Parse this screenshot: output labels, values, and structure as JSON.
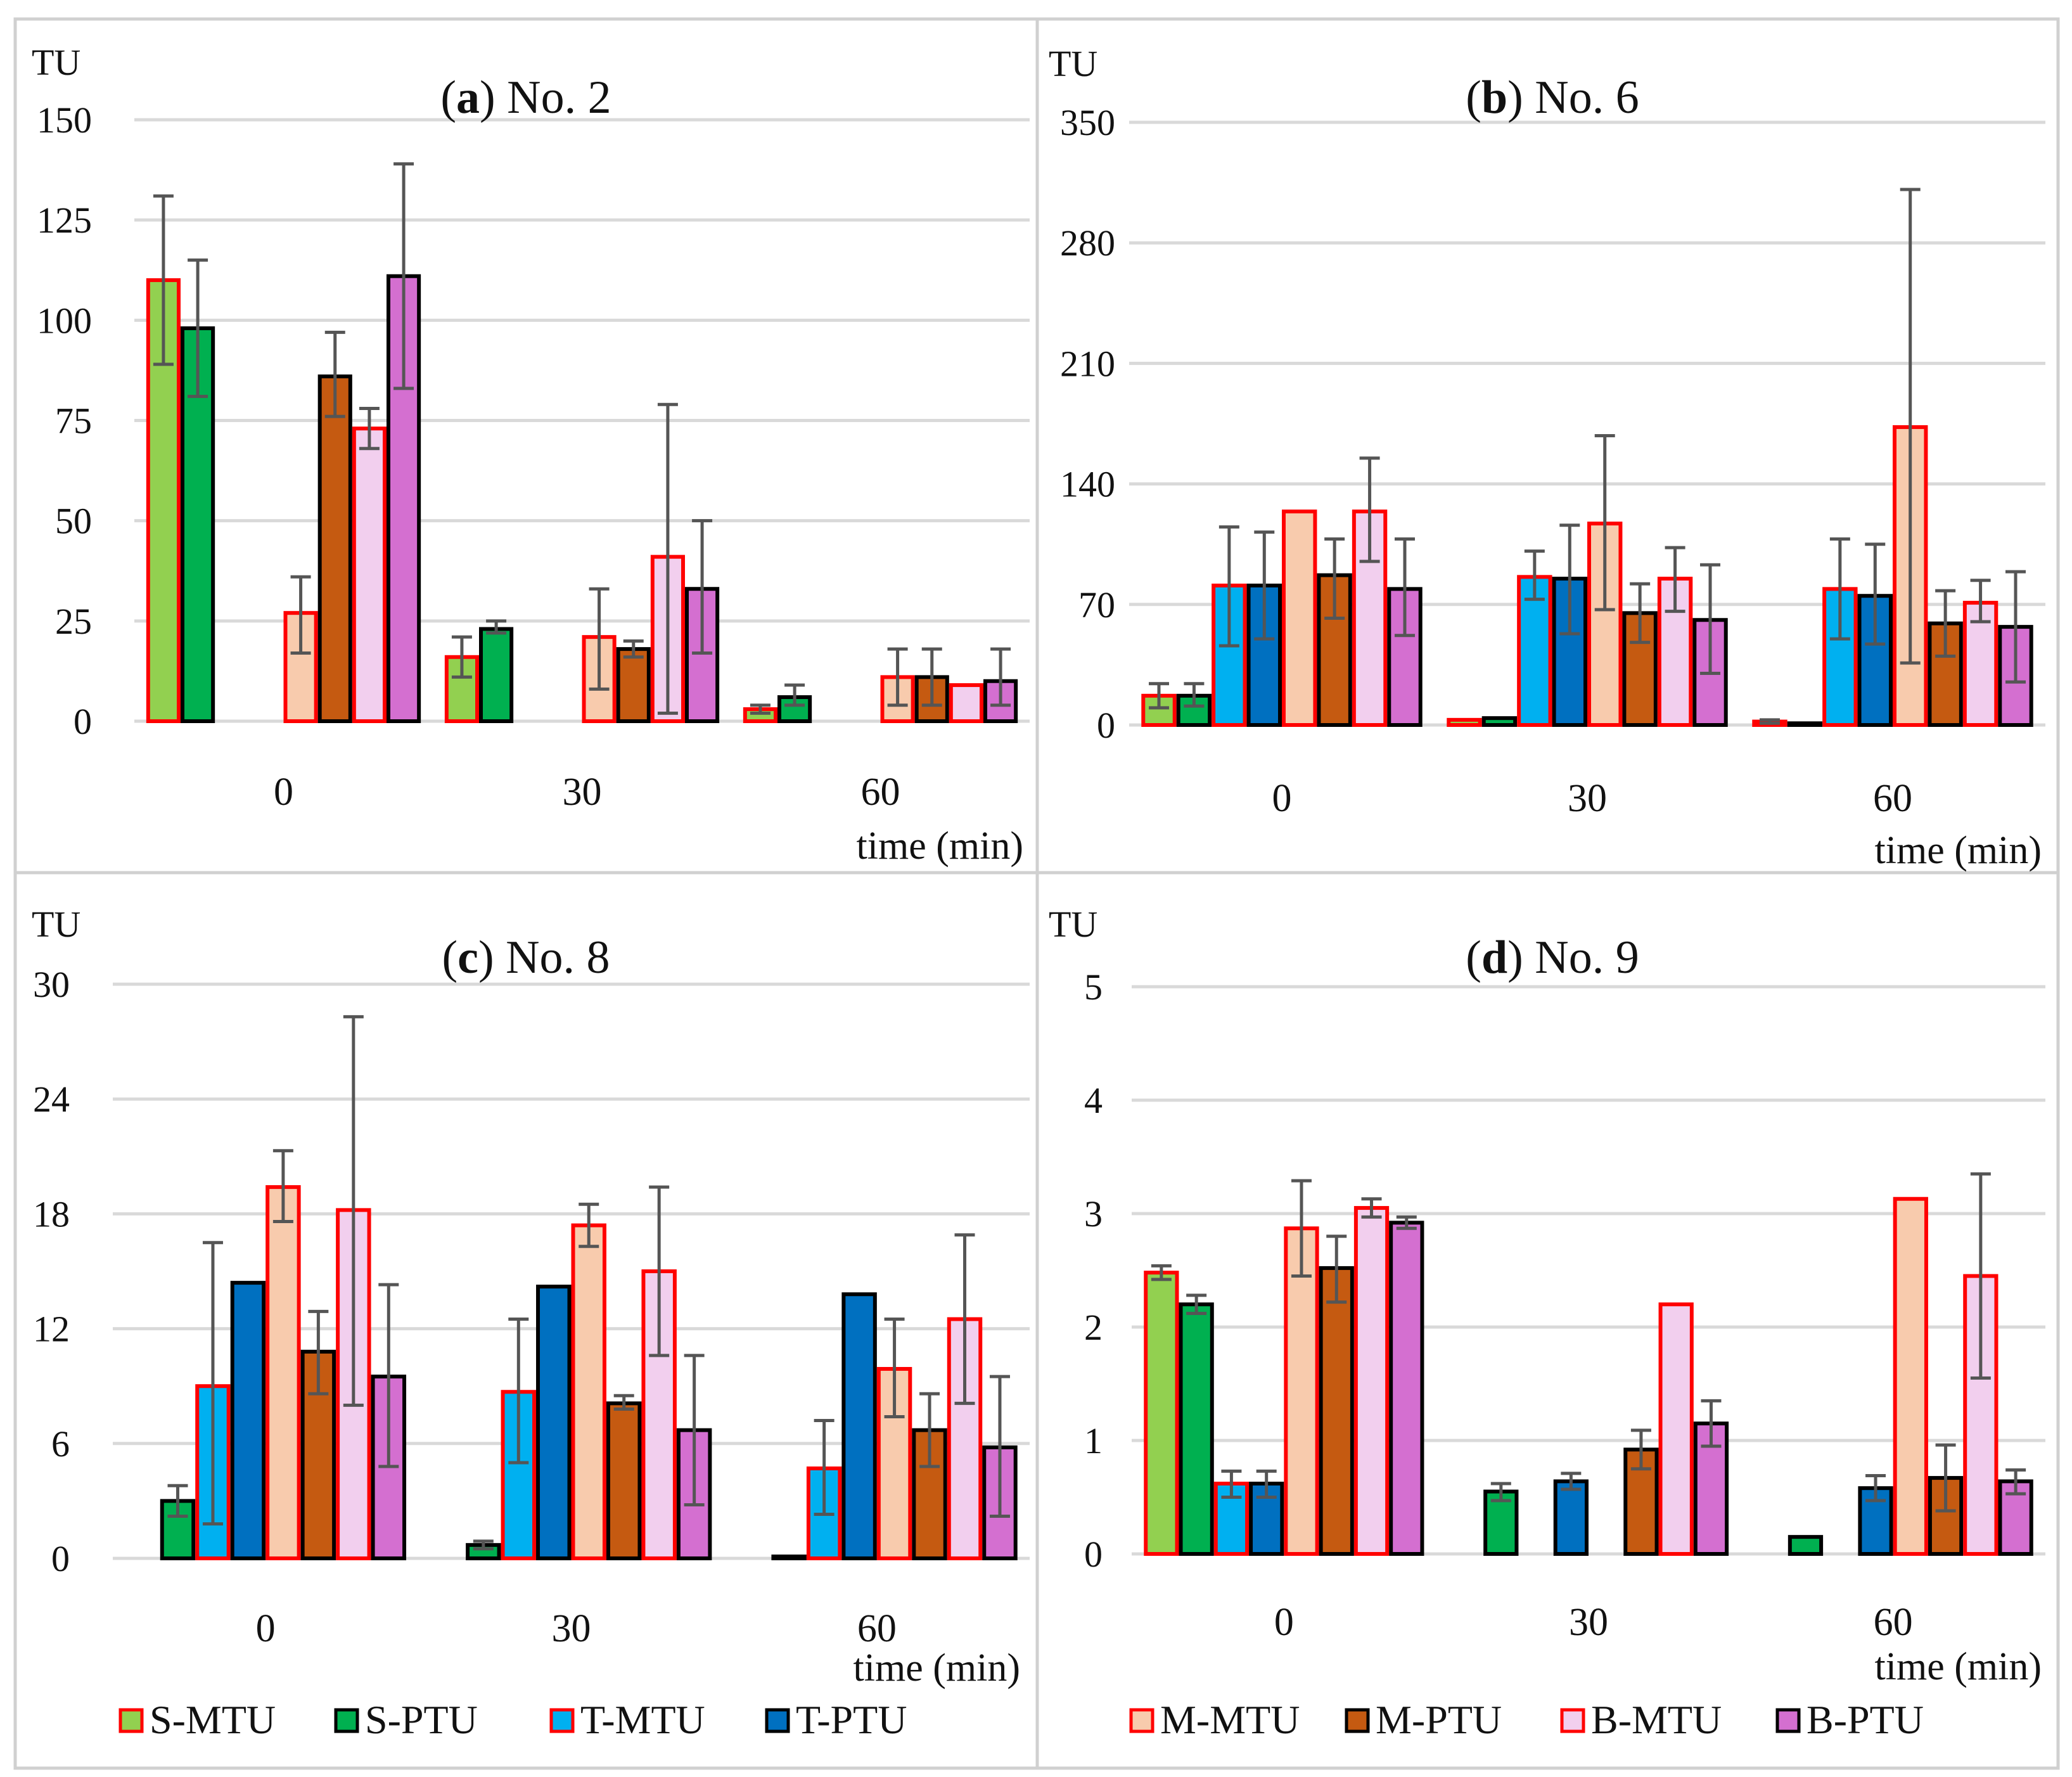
{
  "chart_data": {
    "type": "bar",
    "categories": [
      "0",
      "30",
      "60"
    ],
    "xlabel": "time (min)",
    "ylabel": "TU",
    "series_names": [
      "S-MTU",
      "S-PTU",
      "T-MTU",
      "T-PTU",
      "M-MTU",
      "M-PTU",
      "B-MTU",
      "B-PTU"
    ],
    "series_colors": [
      "#92d050",
      "#00b050",
      "#00b0f0",
      "#0070c0",
      "#f8cbad",
      "#c55a11",
      "#f2cfee",
      "#d46fd0"
    ],
    "series_borders": [
      "#ff0000",
      "#000000",
      "#ff0000",
      "#000000",
      "#ff0000",
      "#000000",
      "#ff0000",
      "#000000"
    ],
    "error_bar_color": "#555555",
    "grid": true,
    "legends": [
      {
        "placement": "bottom-left",
        "entries": [
          "S-MTU",
          "S-PTU",
          "T-MTU",
          "T-PTU"
        ]
      },
      {
        "placement": "bottom-right",
        "entries": [
          "M-MTU",
          "M-PTU",
          "B-MTU",
          "B-PTU"
        ]
      }
    ],
    "panels": [
      {
        "label": "a",
        "title": "No. 2",
        "ylim": [
          0,
          150
        ],
        "yticks": [
          0,
          25,
          50,
          75,
          100,
          125,
          150
        ],
        "values": [
          [
            110,
            98,
            null,
            null,
            27,
            86,
            73,
            111
          ],
          [
            16,
            23,
            null,
            null,
            21,
            18,
            41,
            33
          ],
          [
            3,
            6,
            null,
            null,
            11,
            11,
            9,
            10
          ]
        ],
        "errors": [
          [
            [
              89,
              131
            ],
            [
              81,
              115
            ],
            null,
            null,
            [
              17,
              36
            ],
            [
              76,
              97
            ],
            [
              68,
              78
            ],
            [
              83,
              139
            ]
          ],
          [
            [
              11,
              21
            ],
            [
              22,
              25
            ],
            null,
            null,
            [
              8,
              33
            ],
            [
              16,
              20
            ],
            [
              2,
              79
            ],
            [
              17,
              50
            ]
          ],
          [
            [
              2,
              4
            ],
            [
              4,
              9
            ],
            null,
            null,
            [
              4,
              18
            ],
            [
              4,
              18
            ],
            null,
            [
              4,
              18
            ]
          ]
        ]
      },
      {
        "label": "b",
        "title": "No. 6",
        "ylim": [
          0,
          350
        ],
        "yticks": [
          0,
          70,
          140,
          210,
          280,
          350
        ],
        "values": [
          [
            17,
            17,
            81,
            81,
            124,
            87,
            124,
            79
          ],
          [
            3,
            4,
            86,
            85,
            117,
            65,
            85,
            61
          ],
          [
            2,
            1,
            79,
            75,
            173,
            59,
            71,
            57
          ]
        ],
        "errors": [
          [
            [
              10,
              24
            ],
            [
              11,
              24
            ],
            [
              46,
              115
            ],
            [
              50,
              112
            ],
            null,
            [
              62,
              108
            ],
            [
              95,
              155
            ],
            [
              52,
              108
            ]
          ],
          [
            null,
            null,
            [
              73,
              101
            ],
            [
              53,
              116
            ],
            [
              67,
              168
            ],
            [
              48,
              82
            ],
            [
              66,
              103
            ],
            [
              30,
              93
            ]
          ],
          [
            [
              1,
              3
            ],
            null,
            [
              50,
              108
            ],
            [
              47,
              105
            ],
            [
              36,
              311
            ],
            [
              40,
              78
            ],
            [
              60,
              84
            ],
            [
              25,
              89
            ]
          ]
        ]
      },
      {
        "label": "c",
        "title": "No. 8",
        "ylim": [
          0,
          30
        ],
        "yticks": [
          0,
          6,
          12,
          18,
          24,
          30
        ],
        "values": [
          [
            null,
            3,
            9,
            14.4,
            19.4,
            10.8,
            18.2,
            9.5
          ],
          [
            null,
            0.7,
            8.7,
            14.2,
            17.4,
            8.1,
            15,
            6.7
          ],
          [
            null,
            0.1,
            4.7,
            13.8,
            9.9,
            6.7,
            12.5,
            5.8
          ]
        ],
        "errors": [
          [
            null,
            [
              2.2,
              3.8
            ],
            [
              1.8,
              16.5
            ],
            null,
            [
              17.6,
              21.3
            ],
            [
              8.6,
              12.9
            ],
            [
              8,
              28.3
            ],
            [
              4.8,
              14.3
            ]
          ],
          [
            null,
            [
              0.5,
              0.9
            ],
            [
              5,
              12.5
            ],
            null,
            [
              16.3,
              18.5
            ],
            [
              7.8,
              8.5
            ],
            [
              10.6,
              19.4
            ],
            [
              2.8,
              10.6
            ]
          ],
          [
            null,
            null,
            [
              2.3,
              7.2
            ],
            null,
            [
              7.4,
              12.5
            ],
            [
              4.8,
              8.6
            ],
            [
              8.1,
              16.9
            ],
            [
              2.2,
              9.5
            ]
          ]
        ]
      },
      {
        "label": "d",
        "title": "No. 9",
        "ylim": [
          0,
          5
        ],
        "yticks": [
          0,
          1,
          2,
          3,
          4,
          5
        ],
        "values": [
          [
            2.48,
            2.2,
            0.62,
            0.62,
            2.87,
            2.52,
            3.05,
            2.92
          ],
          [
            null,
            0.55,
            null,
            0.64,
            null,
            0.92,
            2.2,
            1.15
          ],
          [
            null,
            0.15,
            null,
            0.58,
            3.13,
            0.67,
            2.45,
            0.64
          ]
        ],
        "errors": [
          [
            [
              2.42,
              2.54
            ],
            [
              2.12,
              2.28
            ],
            [
              0.5,
              0.73
            ],
            [
              0.5,
              0.73
            ],
            [
              2.45,
              3.29
            ],
            [
              2.22,
              2.8
            ],
            [
              2.97,
              3.13
            ],
            [
              2.87,
              2.97
            ]
          ],
          [
            null,
            [
              0.47,
              0.62
            ],
            null,
            [
              0.57,
              0.71
            ],
            null,
            [
              0.75,
              1.09
            ],
            null,
            [
              0.95,
              1.35
            ]
          ],
          [
            null,
            null,
            null,
            [
              0.47,
              0.69
            ],
            null,
            [
              0.38,
              0.96
            ],
            [
              1.55,
              3.35
            ],
            [
              0.53,
              0.74
            ]
          ]
        ]
      }
    ]
  }
}
